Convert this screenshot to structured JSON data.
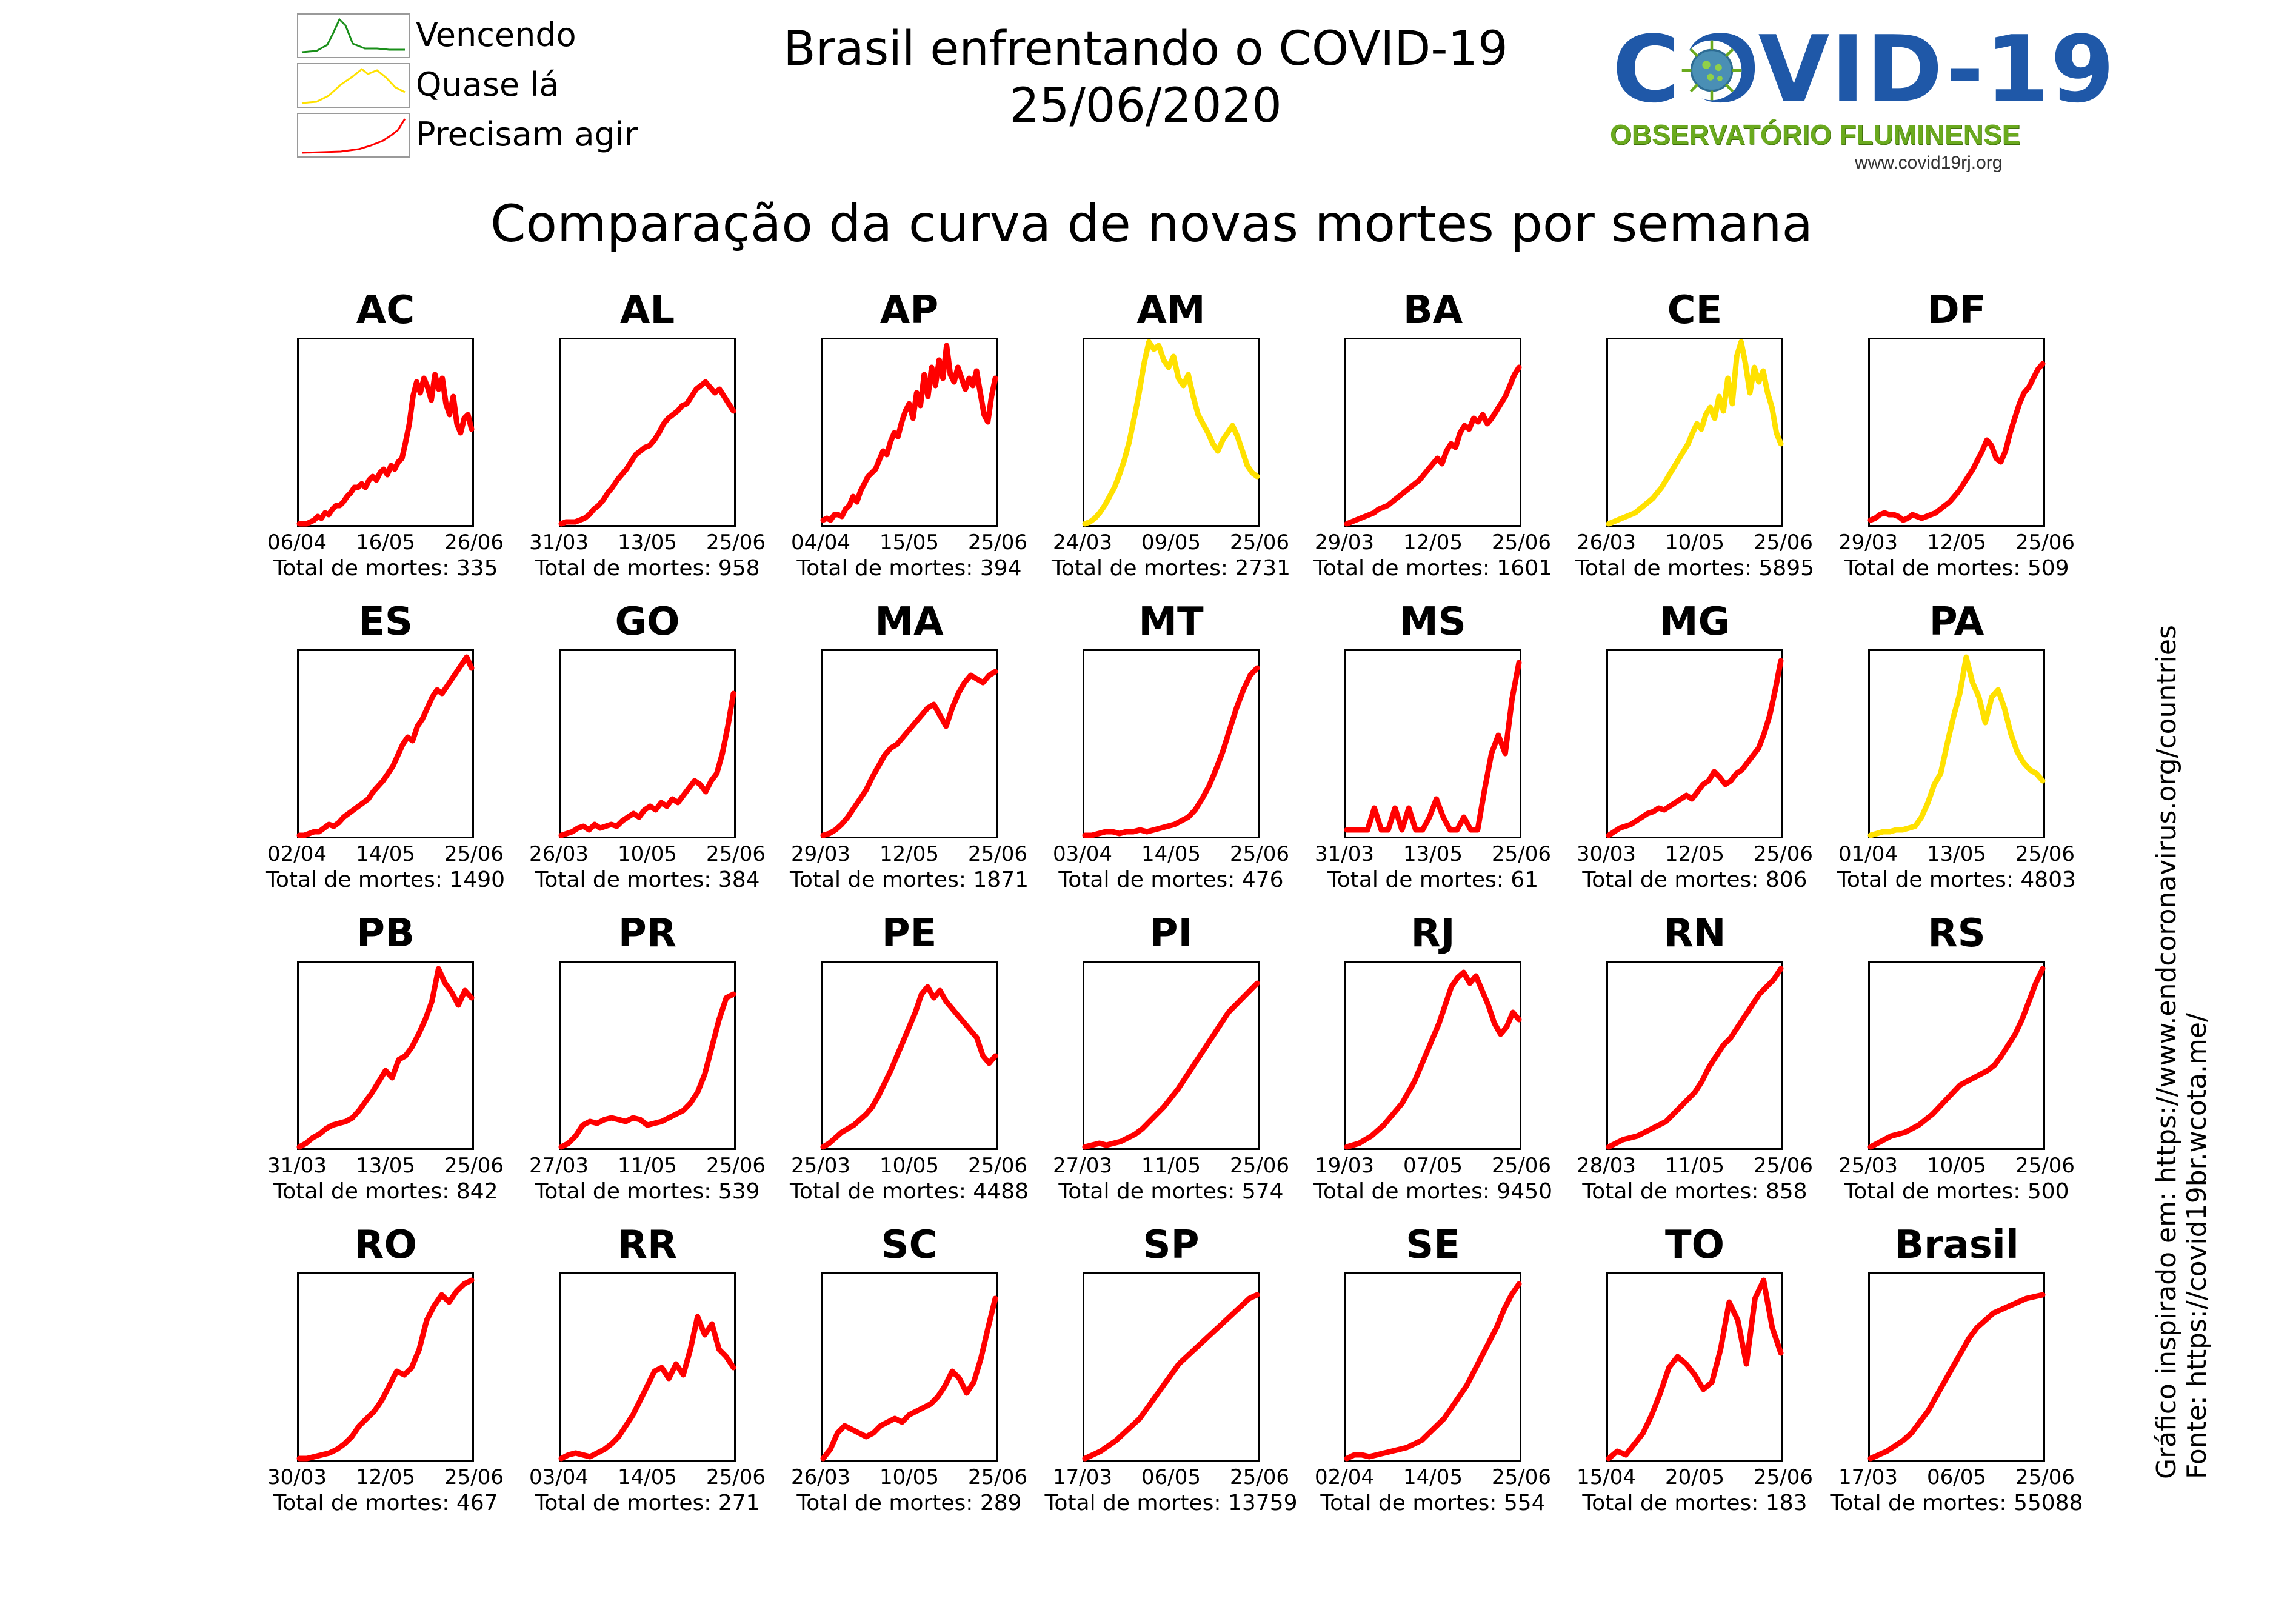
{
  "header": {
    "title": "Brasil enfrentando o COVID-19",
    "date": "25/06/2020",
    "subtitle": "Comparação da curva de novas mortes por semana"
  },
  "legend": [
    {
      "label": "Vencendo",
      "color": "#1a8f1a"
    },
    {
      "label": "Quase lá",
      "color": "#ffdd00"
    },
    {
      "label": "Precisam agir",
      "color": "#ff0000"
    }
  ],
  "logo": {
    "word": "COVID-19",
    "org": "OBSERVATÓRIO FLUMINENSE",
    "url": "www.covid19rj.org"
  },
  "source": {
    "inspired": "Gráfico inspirado em: https://www.endcoronavirus.org/countries",
    "data": "Fonte: https://covid19br.wcota.me/"
  },
  "total_prefix": "Total de mortes: ",
  "colors": {
    "red": "#ff0000",
    "yellow": "#ffe100",
    "green": "#1a8f1a"
  },
  "chart_data": [
    {
      "type": "line",
      "title": "AC",
      "status": "red",
      "ticks": [
        "06/04",
        "16/05",
        "26/06"
      ],
      "total": 335,
      "values": [
        0,
        0,
        0,
        0.01,
        0.02,
        0.04,
        0.03,
        0.06,
        0.05,
        0.08,
        0.1,
        0.1,
        0.12,
        0.15,
        0.17,
        0.2,
        0.2,
        0.22,
        0.2,
        0.24,
        0.26,
        0.24,
        0.28,
        0.3,
        0.27,
        0.32,
        0.3,
        0.34,
        0.36,
        0.45,
        0.55,
        0.7,
        0.78,
        0.72,
        0.8,
        0.75,
        0.68,
        0.82,
        0.74,
        0.8,
        0.66,
        0.6,
        0.7,
        0.55,
        0.5,
        0.58,
        0.6,
        0.52
      ]
    },
    {
      "type": "line",
      "title": "AL",
      "status": "red",
      "ticks": [
        "31/03",
        "13/05",
        "25/06"
      ],
      "total": 958,
      "values": [
        0,
        0.01,
        0.01,
        0.01,
        0.02,
        0.03,
        0.05,
        0.08,
        0.1,
        0.13,
        0.17,
        0.2,
        0.24,
        0.27,
        0.3,
        0.34,
        0.38,
        0.4,
        0.42,
        0.43,
        0.46,
        0.5,
        0.55,
        0.58,
        0.6,
        0.62,
        0.65,
        0.66,
        0.7,
        0.74,
        0.76,
        0.78,
        0.75,
        0.72,
        0.74,
        0.7,
        0.66,
        0.62
      ]
    },
    {
      "type": "line",
      "title": "AP",
      "status": "red",
      "ticks": [
        "04/04",
        "15/05",
        "25/06"
      ],
      "total": 394,
      "values": [
        0.02,
        0.03,
        0.02,
        0.05,
        0.05,
        0.04,
        0.08,
        0.1,
        0.15,
        0.12,
        0.18,
        0.22,
        0.26,
        0.28,
        0.3,
        0.35,
        0.4,
        0.38,
        0.45,
        0.5,
        0.48,
        0.56,
        0.62,
        0.66,
        0.58,
        0.72,
        0.65,
        0.82,
        0.7,
        0.86,
        0.76,
        0.9,
        0.8,
        0.98,
        0.82,
        0.78,
        0.86,
        0.8,
        0.74,
        0.8,
        0.76,
        0.84,
        0.72,
        0.6,
        0.56,
        0.7,
        0.8
      ]
    },
    {
      "type": "line",
      "title": "AM",
      "status": "yellow",
      "ticks": [
        "24/03",
        "09/05",
        "25/06"
      ],
      "total": 2731,
      "values": [
        0,
        0.01,
        0.03,
        0.06,
        0.1,
        0.15,
        0.2,
        0.27,
        0.35,
        0.45,
        0.58,
        0.72,
        0.88,
        1,
        0.96,
        0.98,
        0.9,
        0.86,
        0.92,
        0.8,
        0.76,
        0.82,
        0.7,
        0.6,
        0.55,
        0.5,
        0.44,
        0.4,
        0.46,
        0.5,
        0.54,
        0.48,
        0.4,
        0.32,
        0.28,
        0.26
      ]
    },
    {
      "type": "line",
      "title": "BA",
      "status": "red",
      "ticks": [
        "29/03",
        "12/05",
        "25/06"
      ],
      "total": 1601,
      "values": [
        0,
        0.01,
        0.02,
        0.03,
        0.04,
        0.05,
        0.06,
        0.08,
        0.09,
        0.1,
        0.12,
        0.14,
        0.16,
        0.18,
        0.2,
        0.22,
        0.24,
        0.27,
        0.3,
        0.33,
        0.36,
        0.33,
        0.4,
        0.44,
        0.42,
        0.5,
        0.54,
        0.52,
        0.58,
        0.56,
        0.6,
        0.55,
        0.58,
        0.62,
        0.66,
        0.7,
        0.76,
        0.82,
        0.86
      ]
    },
    {
      "type": "line",
      "title": "CE",
      "status": "yellow",
      "ticks": [
        "26/03",
        "10/05",
        "25/06"
      ],
      "total": 5895,
      "values": [
        0,
        0.01,
        0.02,
        0.03,
        0.04,
        0.05,
        0.06,
        0.08,
        0.1,
        0.12,
        0.14,
        0.17,
        0.2,
        0.24,
        0.28,
        0.32,
        0.36,
        0.4,
        0.44,
        0.5,
        0.55,
        0.52,
        0.6,
        0.64,
        0.58,
        0.7,
        0.62,
        0.8,
        0.66,
        0.92,
        1,
        0.88,
        0.72,
        0.86,
        0.78,
        0.84,
        0.72,
        0.64,
        0.5,
        0.44
      ]
    },
    {
      "type": "line",
      "title": "DF",
      "status": "red",
      "ticks": [
        "29/03",
        "12/05",
        "25/06"
      ],
      "total": 509,
      "values": [
        0.02,
        0.03,
        0.05,
        0.06,
        0.05,
        0.05,
        0.04,
        0.02,
        0.03,
        0.05,
        0.04,
        0.03,
        0.04,
        0.05,
        0.06,
        0.08,
        0.1,
        0.12,
        0.15,
        0.18,
        0.22,
        0.26,
        0.3,
        0.35,
        0.4,
        0.46,
        0.43,
        0.36,
        0.34,
        0.4,
        0.5,
        0.58,
        0.66,
        0.72,
        0.75,
        0.8,
        0.85,
        0.88
      ]
    },
    {
      "type": "line",
      "title": "ES",
      "status": "red",
      "ticks": [
        "02/04",
        "14/05",
        "25/06"
      ],
      "total": 1490,
      "values": [
        0,
        0,
        0.01,
        0.02,
        0.02,
        0.04,
        0.06,
        0.05,
        0.07,
        0.1,
        0.12,
        0.14,
        0.16,
        0.18,
        0.2,
        0.24,
        0.27,
        0.3,
        0.34,
        0.38,
        0.44,
        0.5,
        0.54,
        0.52,
        0.6,
        0.64,
        0.7,
        0.76,
        0.8,
        0.78,
        0.82,
        0.86,
        0.9,
        0.94,
        0.98,
        0.92
      ]
    },
    {
      "type": "line",
      "title": "GO",
      "status": "red",
      "ticks": [
        "26/03",
        "10/05",
        "25/06"
      ],
      "total": 384,
      "values": [
        0,
        0.01,
        0.02,
        0.04,
        0.05,
        0.03,
        0.06,
        0.04,
        0.05,
        0.06,
        0.05,
        0.08,
        0.1,
        0.12,
        0.1,
        0.14,
        0.16,
        0.14,
        0.18,
        0.16,
        0.2,
        0.18,
        0.22,
        0.26,
        0.3,
        0.28,
        0.24,
        0.3,
        0.34,
        0.45,
        0.6,
        0.78
      ]
    },
    {
      "type": "line",
      "title": "MA",
      "status": "red",
      "ticks": [
        "29/03",
        "12/05",
        "25/06"
      ],
      "total": 1871,
      "values": [
        0,
        0.01,
        0.03,
        0.06,
        0.1,
        0.15,
        0.2,
        0.25,
        0.32,
        0.38,
        0.44,
        0.48,
        0.5,
        0.54,
        0.58,
        0.62,
        0.66,
        0.7,
        0.72,
        0.66,
        0.6,
        0.7,
        0.78,
        0.84,
        0.88,
        0.86,
        0.84,
        0.88,
        0.9
      ]
    },
    {
      "type": "line",
      "title": "MT",
      "status": "red",
      "ticks": [
        "03/04",
        "14/05",
        "25/06"
      ],
      "total": 476,
      "values": [
        0,
        0,
        0.01,
        0.02,
        0.02,
        0.01,
        0.02,
        0.02,
        0.03,
        0.02,
        0.03,
        0.04,
        0.05,
        0.06,
        0.08,
        0.1,
        0.14,
        0.2,
        0.27,
        0.36,
        0.46,
        0.58,
        0.7,
        0.8,
        0.88,
        0.92
      ]
    },
    {
      "type": "line",
      "title": "MS",
      "status": "red",
      "ticks": [
        "31/03",
        "13/05",
        "25/06"
      ],
      "total": 61,
      "values": [
        0.03,
        0.03,
        0.03,
        0.03,
        0.15,
        0.03,
        0.03,
        0.15,
        0.03,
        0.15,
        0.03,
        0.03,
        0.1,
        0.2,
        0.1,
        0.03,
        0.03,
        0.1,
        0.03,
        0.03,
        0.25,
        0.45,
        0.55,
        0.45,
        0.75,
        0.95
      ]
    },
    {
      "type": "line",
      "title": "MG",
      "status": "red",
      "ticks": [
        "30/03",
        "12/05",
        "25/06"
      ],
      "total": 806,
      "values": [
        0,
        0.02,
        0.04,
        0.05,
        0.06,
        0.08,
        0.1,
        0.12,
        0.13,
        0.15,
        0.14,
        0.16,
        0.18,
        0.2,
        0.22,
        0.2,
        0.24,
        0.28,
        0.3,
        0.35,
        0.32,
        0.28,
        0.3,
        0.34,
        0.36,
        0.4,
        0.44,
        0.48,
        0.56,
        0.66,
        0.8,
        0.96
      ]
    },
    {
      "type": "line",
      "title": "PA",
      "status": "yellow",
      "ticks": [
        "01/04",
        "13/05",
        "25/06"
      ],
      "total": 4803,
      "values": [
        0,
        0.01,
        0.02,
        0.02,
        0.03,
        0.03,
        0.04,
        0.05,
        0.1,
        0.18,
        0.28,
        0.34,
        0.5,
        0.65,
        0.78,
        0.98,
        0.84,
        0.76,
        0.62,
        0.76,
        0.8,
        0.7,
        0.56,
        0.46,
        0.4,
        0.36,
        0.34,
        0.3
      ]
    },
    {
      "type": "line",
      "title": "PB",
      "status": "red",
      "ticks": [
        "31/03",
        "13/05",
        "25/06"
      ],
      "total": 842,
      "values": [
        0,
        0.02,
        0.05,
        0.07,
        0.1,
        0.12,
        0.13,
        0.14,
        0.16,
        0.2,
        0.25,
        0.3,
        0.36,
        0.42,
        0.38,
        0.48,
        0.5,
        0.55,
        0.62,
        0.7,
        0.8,
        0.98,
        0.9,
        0.85,
        0.78,
        0.86,
        0.82
      ]
    },
    {
      "type": "line",
      "title": "PR",
      "status": "red",
      "ticks": [
        "27/03",
        "11/05",
        "25/06"
      ],
      "total": 539,
      "values": [
        0,
        0.02,
        0.06,
        0.12,
        0.14,
        0.13,
        0.15,
        0.16,
        0.15,
        0.14,
        0.16,
        0.15,
        0.12,
        0.13,
        0.14,
        0.16,
        0.18,
        0.2,
        0.24,
        0.3,
        0.4,
        0.55,
        0.7,
        0.82,
        0.84
      ]
    },
    {
      "type": "line",
      "title": "PE",
      "status": "red",
      "ticks": [
        "25/03",
        "10/05",
        "25/06"
      ],
      "total": 4488,
      "values": [
        0,
        0.02,
        0.05,
        0.08,
        0.1,
        0.12,
        0.15,
        0.18,
        0.22,
        0.28,
        0.35,
        0.42,
        0.5,
        0.58,
        0.66,
        0.74,
        0.84,
        0.88,
        0.82,
        0.86,
        0.8,
        0.76,
        0.72,
        0.68,
        0.64,
        0.6,
        0.5,
        0.46,
        0.5
      ]
    },
    {
      "type": "line",
      "title": "PI",
      "status": "red",
      "ticks": [
        "27/03",
        "11/05",
        "25/06"
      ],
      "total": 574,
      "values": [
        0,
        0.01,
        0.02,
        0.01,
        0.02,
        0.03,
        0.05,
        0.07,
        0.1,
        0.14,
        0.18,
        0.22,
        0.27,
        0.32,
        0.38,
        0.44,
        0.5,
        0.56,
        0.62,
        0.68,
        0.74,
        0.78,
        0.82,
        0.86,
        0.9
      ]
    },
    {
      "type": "line",
      "title": "RJ",
      "status": "red",
      "ticks": [
        "19/03",
        "07/05",
        "25/06"
      ],
      "total": 9450,
      "values": [
        0,
        0.01,
        0.02,
        0.04,
        0.06,
        0.09,
        0.12,
        0.16,
        0.2,
        0.24,
        0.3,
        0.36,
        0.44,
        0.52,
        0.6,
        0.68,
        0.78,
        0.88,
        0.93,
        0.96,
        0.9,
        0.94,
        0.86,
        0.78,
        0.68,
        0.62,
        0.66,
        0.74,
        0.7
      ]
    },
    {
      "type": "line",
      "title": "RN",
      "status": "red",
      "ticks": [
        "28/03",
        "11/05",
        "25/06"
      ],
      "total": 858,
      "values": [
        0,
        0.02,
        0.04,
        0.05,
        0.06,
        0.08,
        0.1,
        0.12,
        0.14,
        0.18,
        0.22,
        0.26,
        0.3,
        0.36,
        0.44,
        0.5,
        0.56,
        0.6,
        0.66,
        0.72,
        0.78,
        0.84,
        0.88,
        0.92,
        0.98
      ]
    },
    {
      "type": "line",
      "title": "RS",
      "status": "red",
      "ticks": [
        "25/03",
        "10/05",
        "25/06"
      ],
      "total": 500,
      "values": [
        0,
        0.02,
        0.04,
        0.06,
        0.07,
        0.08,
        0.1,
        0.12,
        0.15,
        0.18,
        0.22,
        0.26,
        0.3,
        0.34,
        0.36,
        0.38,
        0.4,
        0.42,
        0.45,
        0.5,
        0.56,
        0.62,
        0.7,
        0.8,
        0.9,
        0.98
      ]
    },
    {
      "type": "line",
      "title": "RO",
      "status": "red",
      "ticks": [
        "30/03",
        "12/05",
        "25/06"
      ],
      "total": 467,
      "values": [
        0,
        0,
        0.01,
        0.02,
        0.03,
        0.05,
        0.08,
        0.12,
        0.18,
        0.22,
        0.26,
        0.32,
        0.4,
        0.48,
        0.46,
        0.5,
        0.6,
        0.76,
        0.84,
        0.9,
        0.86,
        0.92,
        0.96,
        0.98
      ]
    },
    {
      "type": "line",
      "title": "RR",
      "status": "red",
      "ticks": [
        "03/04",
        "14/05",
        "25/06"
      ],
      "total": 271,
      "values": [
        0,
        0.02,
        0.03,
        0.02,
        0.01,
        0.03,
        0.05,
        0.08,
        0.12,
        0.18,
        0.24,
        0.32,
        0.4,
        0.48,
        0.5,
        0.44,
        0.52,
        0.46,
        0.6,
        0.78,
        0.68,
        0.74,
        0.6,
        0.56,
        0.5
      ]
    },
    {
      "type": "line",
      "title": "SC",
      "status": "red",
      "ticks": [
        "26/03",
        "10/05",
        "25/06"
      ],
      "total": 289,
      "values": [
        0,
        0.05,
        0.14,
        0.18,
        0.16,
        0.14,
        0.12,
        0.14,
        0.18,
        0.2,
        0.22,
        0.2,
        0.24,
        0.26,
        0.28,
        0.3,
        0.34,
        0.4,
        0.48,
        0.44,
        0.36,
        0.42,
        0.55,
        0.72,
        0.88
      ]
    },
    {
      "type": "line",
      "title": "SP",
      "status": "red",
      "ticks": [
        "17/03",
        "06/05",
        "25/06"
      ],
      "total": 13759,
      "values": [
        0,
        0.02,
        0.04,
        0.07,
        0.1,
        0.14,
        0.18,
        0.22,
        0.28,
        0.34,
        0.4,
        0.46,
        0.52,
        0.56,
        0.6,
        0.64,
        0.68,
        0.72,
        0.76,
        0.8,
        0.84,
        0.88,
        0.9
      ]
    },
    {
      "type": "line",
      "title": "SE",
      "status": "red",
      "ticks": [
        "02/04",
        "14/05",
        "25/06"
      ],
      "total": 554,
      "values": [
        0,
        0.02,
        0.02,
        0.01,
        0.02,
        0.03,
        0.04,
        0.05,
        0.06,
        0.08,
        0.1,
        0.14,
        0.18,
        0.22,
        0.28,
        0.34,
        0.4,
        0.48,
        0.56,
        0.64,
        0.72,
        0.82,
        0.9,
        0.96
      ]
    },
    {
      "type": "line",
      "title": "TO",
      "status": "red",
      "ticks": [
        "15/04",
        "20/05",
        "25/06"
      ],
      "total": 183,
      "values": [
        0,
        0.04,
        0.02,
        0.08,
        0.14,
        0.24,
        0.36,
        0.5,
        0.56,
        0.52,
        0.46,
        0.38,
        0.42,
        0.6,
        0.86,
        0.76,
        0.52,
        0.88,
        0.98,
        0.72,
        0.58
      ]
    },
    {
      "type": "line",
      "title": "Brasil",
      "status": "red",
      "ticks": [
        "17/03",
        "06/05",
        "25/06"
      ],
      "total": 55088,
      "values": [
        0,
        0.02,
        0.04,
        0.07,
        0.1,
        0.14,
        0.2,
        0.26,
        0.34,
        0.42,
        0.5,
        0.58,
        0.66,
        0.72,
        0.76,
        0.8,
        0.82,
        0.84,
        0.86,
        0.88,
        0.89,
        0.9
      ]
    }
  ]
}
